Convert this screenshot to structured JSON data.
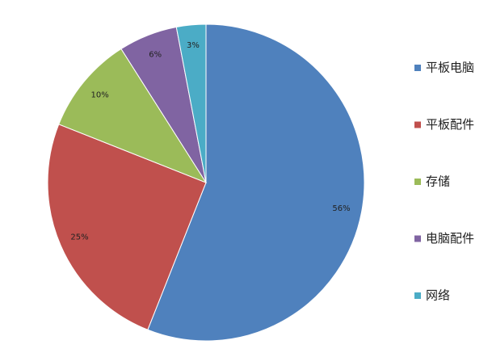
{
  "chart_data": {
    "type": "pie",
    "categories": [
      "平板电脑",
      "平板配件",
      "存储",
      "电脑配件",
      "网络"
    ],
    "values": [
      56,
      25,
      10,
      6,
      3
    ],
    "value_labels": [
      "56%",
      "25%",
      "10%",
      "6%",
      "3%"
    ],
    "colors": [
      "#4f81bd",
      "#c0504d",
      "#9bbb59",
      "#8064a2",
      "#4bacc6"
    ],
    "legend": "right"
  }
}
